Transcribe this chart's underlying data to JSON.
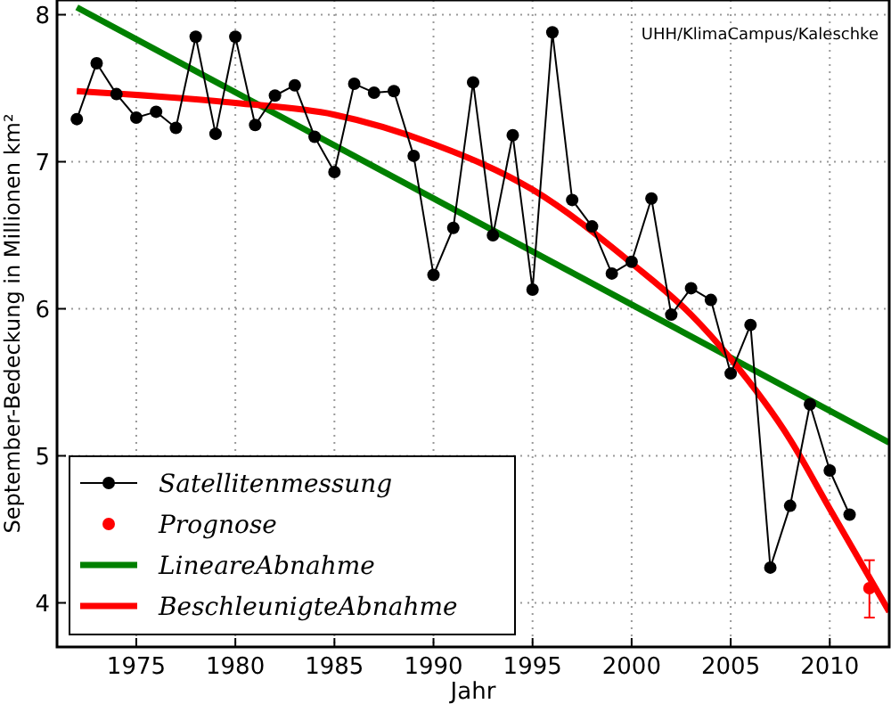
{
  "chart_data": {
    "type": "line",
    "xlabel": "Jahr",
    "ylabel": "September-Bedeckung in Millionen km²",
    "annotations": [
      "UHH/KlimaCampus/Kaleschke"
    ],
    "xlim": [
      1971,
      2013
    ],
    "xticks": [
      1975,
      1980,
      1985,
      1990,
      1995,
      2000,
      2005,
      2010
    ],
    "ylim": [
      3.7,
      8.1
    ],
    "yticks": [
      4,
      5,
      6,
      7,
      8
    ],
    "grid": true,
    "legend": "bottom left",
    "series": [
      {
        "name": "Satellitenmessung",
        "color": "#000000",
        "marker": "circle",
        "x": [
          1972,
          1973,
          1974,
          1975,
          1976,
          1977,
          1978,
          1979,
          1980,
          1981,
          1982,
          1983,
          1984,
          1985,
          1986,
          1987,
          1988,
          1989,
          1990,
          1991,
          1992,
          1993,
          1994,
          1995,
          1996,
          1997,
          1998,
          1999,
          2000,
          2001,
          2002,
          2003,
          2004,
          2005,
          2006,
          2007,
          2008,
          2009,
          2010,
          2011
        ],
        "values": [
          7.29,
          7.67,
          7.46,
          7.3,
          7.34,
          7.23,
          7.85,
          7.19,
          7.85,
          7.25,
          7.45,
          7.52,
          7.17,
          6.93,
          7.53,
          7.47,
          7.48,
          7.04,
          6.23,
          6.55,
          7.54,
          6.5,
          7.18,
          6.13,
          7.88,
          6.74,
          6.56,
          6.24,
          6.32,
          6.75,
          5.96,
          6.14,
          6.06,
          5.56,
          5.89,
          4.24,
          4.66,
          5.35,
          4.9,
          4.6
        ]
      },
      {
        "name": "Prognose",
        "type": "scatter",
        "color": "#ff0000",
        "marker": "circle",
        "x": [
          2012
        ],
        "values": [
          4.1
        ],
        "errors": [
          [
            3.9,
            4.29
          ]
        ]
      },
      {
        "name": "LineareAbnahme",
        "color": "#008000",
        "marker": "none",
        "x": [
          1972,
          2013
        ],
        "values": [
          8.05,
          5.09
        ]
      },
      {
        "name": "BeschleunigteAbnahme",
        "color": "#ff0000",
        "marker": "none",
        "x": [
          1972,
          1980,
          1985,
          1990,
          1995,
          2000,
          2003,
          2005,
          2008,
          2010,
          2013
        ],
        "values": [
          7.48,
          7.4,
          7.32,
          7.12,
          6.81,
          6.31,
          5.96,
          5.66,
          5.11,
          4.64,
          3.94
        ]
      }
    ]
  }
}
